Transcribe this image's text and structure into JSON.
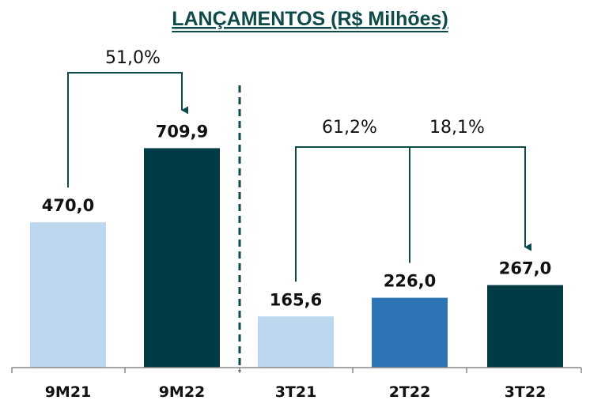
{
  "chart_data": {
    "type": "bar",
    "title": "LANÇAMENTOS (R$ Milhões)",
    "categories": [
      "9M21",
      "9M22",
      "3T21",
      "2T22",
      "3T22"
    ],
    "values": [
      470.0,
      709.9,
      165.6,
      226.0,
      267.0
    ],
    "value_labels": [
      "470,0",
      "709,9",
      "165,6",
      "226,0",
      "267,0"
    ],
    "colors": [
      "#bdd7ee",
      "#003b46",
      "#bdd7ee",
      "#2e75b6",
      "#003b46"
    ],
    "ylim": [
      0,
      800
    ],
    "grid": false,
    "annotations": [
      {
        "text": "51,0%",
        "from": "9M21",
        "to": "9M22"
      },
      {
        "text": "61,2%",
        "from": "3T21",
        "to": "3T22"
      },
      {
        "text": "18,1%",
        "from": "2T22",
        "to": "3T22"
      }
    ],
    "separator_after": "9M22"
  }
}
